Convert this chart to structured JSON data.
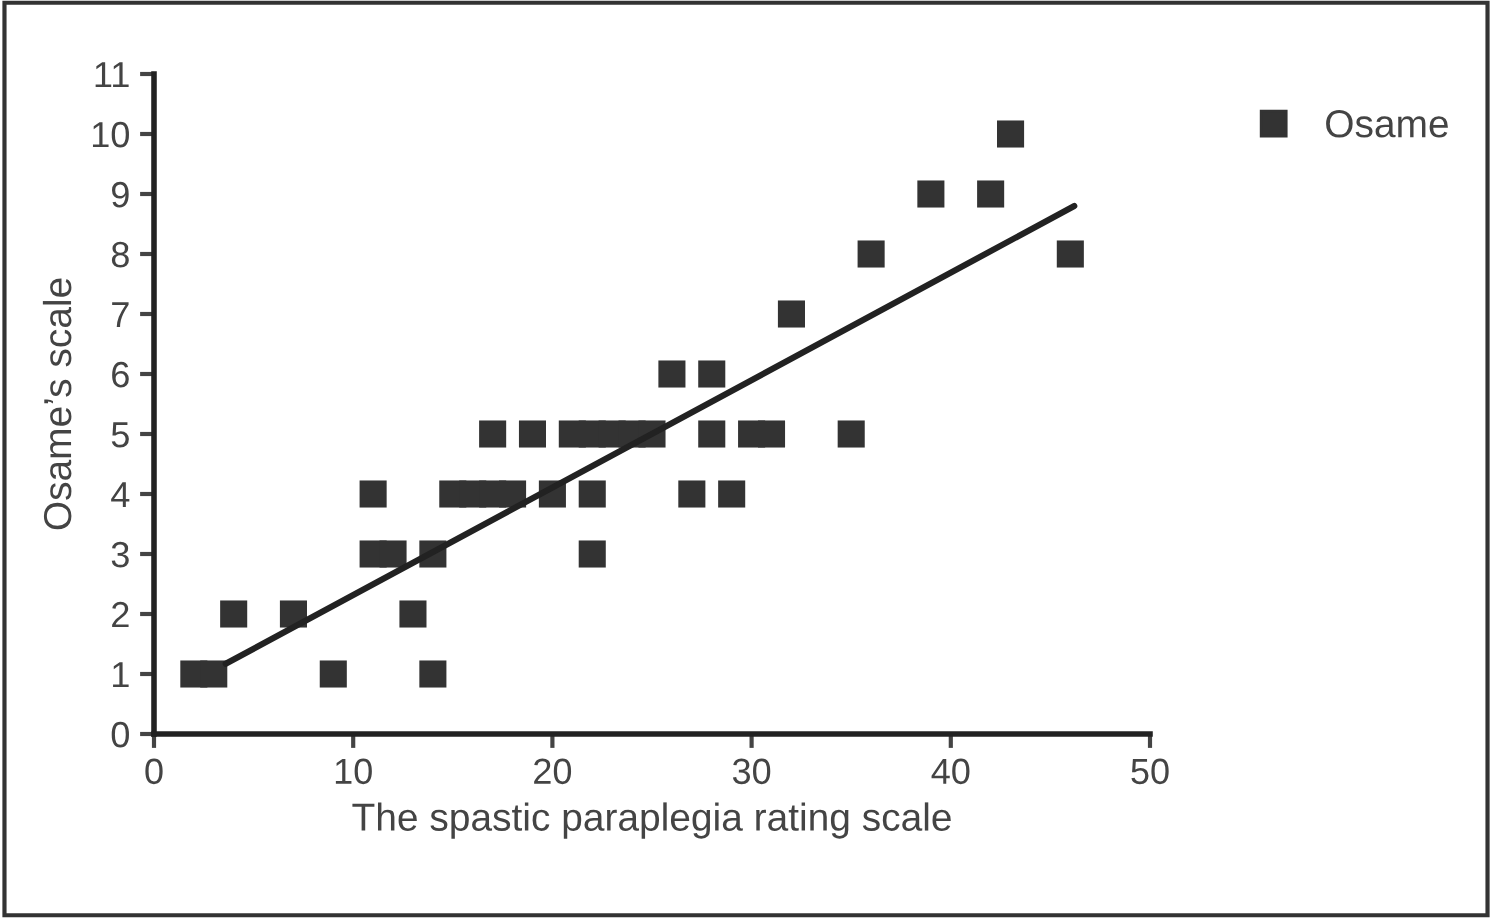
{
  "chart_data": {
    "type": "scatter",
    "xlabel": "The spastic paraplegia rating scale",
    "ylabel": "Osame’s scale",
    "xlim": [
      0,
      50
    ],
    "xticks": [
      0,
      10,
      20,
      30,
      40,
      50
    ],
    "ylim": [
      0,
      11
    ],
    "yticks": [
      0,
      1,
      2,
      3,
      4,
      5,
      6,
      7,
      8,
      9,
      10,
      11
    ],
    "grid": false,
    "legend": "top right",
    "marker": "square",
    "series": [
      {
        "name": "Osame",
        "color": "#333333",
        "x": [
          2,
          3,
          9,
          14,
          4,
          7,
          13,
          11,
          12,
          14,
          22,
          11,
          15,
          16,
          17,
          18,
          20,
          22,
          27,
          29,
          17,
          19,
          21,
          22,
          23,
          24,
          25,
          28,
          30,
          31,
          35,
          26,
          28,
          32,
          36,
          46,
          39,
          42,
          43
        ],
        "values": [
          1,
          1,
          1,
          1,
          2,
          2,
          2,
          3,
          3,
          3,
          3,
          4,
          4,
          4,
          4,
          4,
          4,
          4,
          4,
          4,
          5,
          5,
          5,
          5,
          5,
          5,
          5,
          5,
          5,
          5,
          5,
          6,
          6,
          7,
          8,
          8,
          9,
          9,
          10
        ]
      },
      {
        "color": "#222222",
        "type": "line",
        "marker": "none",
        "x": [
          3.6,
          46.2
        ],
        "values": [
          1.17,
          8.8
        ]
      }
    ]
  }
}
